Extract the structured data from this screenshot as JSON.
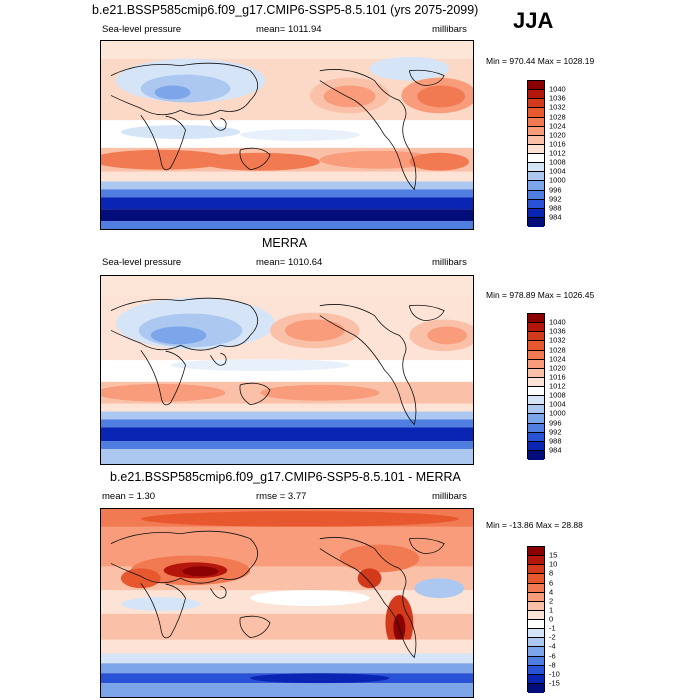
{
  "season": "JJA",
  "panels": [
    {
      "title": "b.e21.BSSP585cmip6.f09_g17.CMIP6-SSP5-8.5.101 (yrs 2075-2099)",
      "left": "Sea-level pressure",
      "center": "mean= 1011.94",
      "right": "millibars",
      "minmax": "Min = 970.44 Max = 1028.19",
      "levels": [
        "1040",
        "1036",
        "1032",
        "1028",
        "1024",
        "1020",
        "1016",
        "1012",
        "1008",
        "1004",
        "1000",
        "996",
        "992",
        "988",
        "984"
      ],
      "colors": [
        "#8b0000",
        "#b5160c",
        "#d33a1c",
        "#e8582f",
        "#f27a52",
        "#f89c7c",
        "#fbc1a8",
        "#fde3d6",
        "#ffffff",
        "#d5e4f7",
        "#acc8f0",
        "#7da6ea",
        "#4f7ee0",
        "#2a52d6",
        "#0a24b4",
        "#000d7a"
      ]
    },
    {
      "title": "MERRA",
      "left": "Sea-level pressure",
      "center": "mean= 1010.64",
      "right": "millibars",
      "minmax": "Min = 978.89 Max = 1026.45",
      "levels": [
        "1040",
        "1036",
        "1032",
        "1028",
        "1024",
        "1020",
        "1016",
        "1012",
        "1008",
        "1004",
        "1000",
        "996",
        "992",
        "988",
        "984"
      ],
      "colors": [
        "#8b0000",
        "#b5160c",
        "#d33a1c",
        "#e8582f",
        "#f27a52",
        "#f89c7c",
        "#fbc1a8",
        "#fde3d6",
        "#ffffff",
        "#d5e4f7",
        "#acc8f0",
        "#7da6ea",
        "#4f7ee0",
        "#2a52d6",
        "#0a24b4",
        "#000d7a"
      ]
    },
    {
      "title": "b.e21.BSSP585cmip6.f09_g17.CMIP6-SSP5-8.5.101 - MERRA",
      "left": "mean =   1.30",
      "center": "rmse =   3.77",
      "right": "millibars",
      "minmax": "Min = -13.86 Max =  28.88",
      "levels": [
        "15",
        "10",
        "8",
        "6",
        "4",
        "2",
        "1",
        "0",
        "-1",
        "-2",
        "-4",
        "-6",
        "-8",
        "-10",
        "-15"
      ],
      "colors": [
        "#8b0000",
        "#b5160c",
        "#d33a1c",
        "#e8582f",
        "#f27a52",
        "#f89c7c",
        "#fbc1a8",
        "#fde3d6",
        "#ffffff",
        "#d5e4f7",
        "#acc8f0",
        "#7da6ea",
        "#4f7ee0",
        "#2a52d6",
        "#0a24b4",
        "#000d7a"
      ]
    }
  ]
}
